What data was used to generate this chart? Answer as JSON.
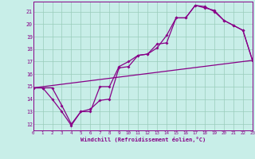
{
  "xlabel": "Windchill (Refroidissement éolien,°C)",
  "xlim": [
    0,
    23
  ],
  "ylim": [
    11.5,
    21.8
  ],
  "xticks": [
    0,
    1,
    2,
    3,
    4,
    5,
    6,
    7,
    8,
    9,
    10,
    11,
    12,
    13,
    14,
    15,
    16,
    17,
    18,
    19,
    20,
    21,
    22,
    23
  ],
  "yticks": [
    12,
    13,
    14,
    15,
    16,
    17,
    18,
    19,
    20,
    21
  ],
  "bg_color": "#c8eee8",
  "line_color": "#880088",
  "grid_color": "#99ccbb",
  "line1_x": [
    0,
    1,
    2,
    3,
    4,
    5,
    6,
    7,
    8,
    9,
    10,
    11,
    12,
    13,
    14,
    15,
    16,
    17,
    18,
    19,
    20,
    21,
    22,
    23
  ],
  "line1_y": [
    14.9,
    14.9,
    14.0,
    13.0,
    11.9,
    13.0,
    13.0,
    15.0,
    15.0,
    16.6,
    17.0,
    17.5,
    17.6,
    18.1,
    19.1,
    20.5,
    20.5,
    21.5,
    21.3,
    21.1,
    20.3,
    19.9,
    19.5,
    17.1
  ],
  "line2_x": [
    0,
    1,
    2,
    3,
    4,
    5,
    6,
    7,
    8,
    9,
    10,
    11,
    12,
    13,
    14,
    15,
    16,
    17,
    18,
    19,
    20,
    21,
    22,
    23
  ],
  "line2_y": [
    14.9,
    14.9,
    14.9,
    13.5,
    12.0,
    13.0,
    13.2,
    13.9,
    14.0,
    16.5,
    16.6,
    17.5,
    17.6,
    18.4,
    18.5,
    20.5,
    20.5,
    21.5,
    21.4,
    21.0,
    20.3,
    19.9,
    19.5,
    17.1
  ],
  "line3_x": [
    0,
    23
  ],
  "line3_y": [
    14.9,
    17.1
  ]
}
